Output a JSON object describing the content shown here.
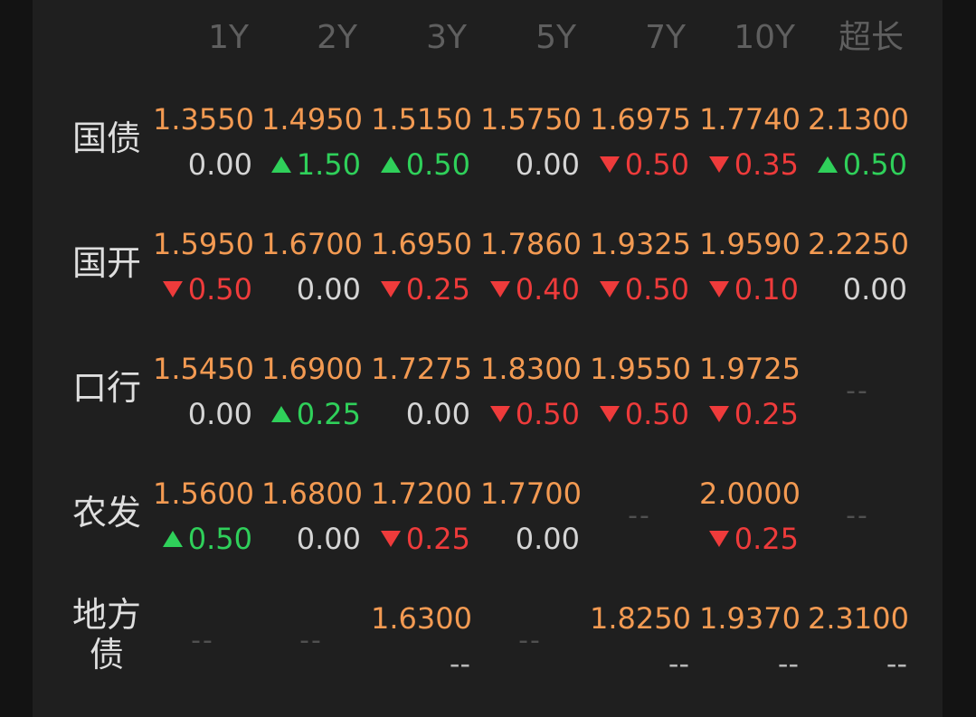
{
  "columns": [
    "1Y",
    "2Y",
    "3Y",
    "5Y",
    "7Y",
    "10Y",
    "超长"
  ],
  "placeholder": "--",
  "colors": {
    "background": "#1f1f1f",
    "rate": "#f39a52",
    "up": "#2fd05a",
    "down": "#ee3b3b",
    "flat": "#d5d5d5",
    "header": "#5f5f5f"
  },
  "rows": [
    {
      "label": "国债",
      "cells": [
        {
          "rate": "1.3550",
          "change": "0.00",
          "direction": "flat"
        },
        {
          "rate": "1.4950",
          "change": "1.50",
          "direction": "up"
        },
        {
          "rate": "1.5150",
          "change": "0.50",
          "direction": "up"
        },
        {
          "rate": "1.5750",
          "change": "0.00",
          "direction": "flat"
        },
        {
          "rate": "1.6975",
          "change": "0.50",
          "direction": "down"
        },
        {
          "rate": "1.7740",
          "change": "0.35",
          "direction": "down"
        },
        {
          "rate": "2.1300",
          "change": "0.50",
          "direction": "up"
        }
      ]
    },
    {
      "label": "国开",
      "cells": [
        {
          "rate": "1.5950",
          "change": "0.50",
          "direction": "down"
        },
        {
          "rate": "1.6700",
          "change": "0.00",
          "direction": "flat"
        },
        {
          "rate": "1.6950",
          "change": "0.25",
          "direction": "down"
        },
        {
          "rate": "1.7860",
          "change": "0.40",
          "direction": "down"
        },
        {
          "rate": "1.9325",
          "change": "0.50",
          "direction": "down"
        },
        {
          "rate": "1.9590",
          "change": "0.10",
          "direction": "down"
        },
        {
          "rate": "2.2250",
          "change": "0.00",
          "direction": "flat"
        }
      ]
    },
    {
      "label": "口行",
      "cells": [
        {
          "rate": "1.5450",
          "change": "0.00",
          "direction": "flat"
        },
        {
          "rate": "1.6900",
          "change": "0.25",
          "direction": "up"
        },
        {
          "rate": "1.7275",
          "change": "0.00",
          "direction": "flat"
        },
        {
          "rate": "1.8300",
          "change": "0.50",
          "direction": "down"
        },
        {
          "rate": "1.9550",
          "change": "0.50",
          "direction": "down"
        },
        {
          "rate": "1.9725",
          "change": "0.25",
          "direction": "down"
        },
        null
      ]
    },
    {
      "label": "农发",
      "cells": [
        {
          "rate": "1.5600",
          "change": "0.50",
          "direction": "up"
        },
        {
          "rate": "1.6800",
          "change": "0.00",
          "direction": "flat"
        },
        {
          "rate": "1.7200",
          "change": "0.25",
          "direction": "down"
        },
        {
          "rate": "1.7700",
          "change": "0.00",
          "direction": "flat"
        },
        null,
        {
          "rate": "2.0000",
          "change": "0.25",
          "direction": "down"
        },
        null
      ]
    },
    {
      "label": "地方债",
      "label_lines": [
        "地方",
        "债"
      ],
      "cells": [
        null,
        null,
        {
          "rate": "1.6300",
          "change": "--",
          "direction": "dash"
        },
        null,
        {
          "rate": "1.8250",
          "change": "--",
          "direction": "dash"
        },
        {
          "rate": "1.9370",
          "change": "--",
          "direction": "dash"
        },
        {
          "rate": "2.3100",
          "change": "--",
          "direction": "dash"
        }
      ]
    }
  ]
}
